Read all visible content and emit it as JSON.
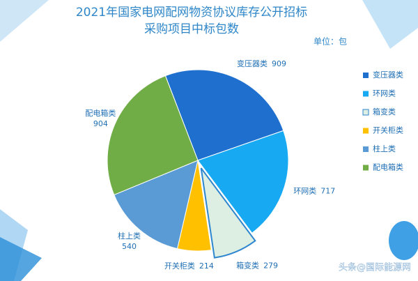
{
  "chart_data": {
    "type": "pie",
    "title": "2021年国家电网配网物资协议库存公开招标",
    "subtitle": "采购项目中标包数",
    "unit": "单位：包",
    "categories": [
      "变压器类",
      "环网类",
      "箱变类",
      "开关柜类",
      "柱上类",
      "配电箱类"
    ],
    "values": [
      909,
      717,
      279,
      214,
      540,
      904
    ],
    "colors": [
      "#1f6fcf",
      "#17a9f2",
      "#dcefe2",
      "#ffc000",
      "#5b9bd5",
      "#70ad47"
    ],
    "legend": "right",
    "watermark": "头条@国际能源网"
  }
}
